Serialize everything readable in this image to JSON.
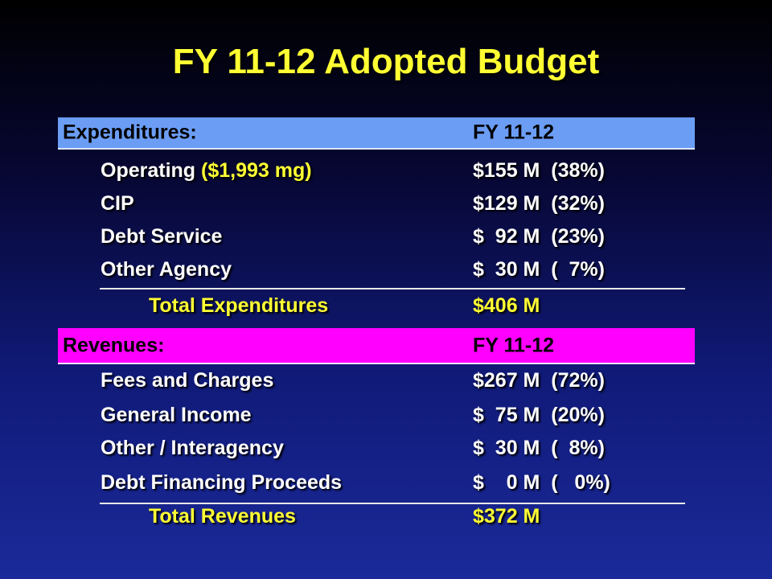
{
  "title": "FY 11-12 Adopted Budget",
  "colors": {
    "title": "#ffff33",
    "expenditures_band": "#6b9df5",
    "revenues_band": "#ff00ff",
    "row_text": "#ffffff"
  },
  "expenditures": {
    "label": "Expenditures:",
    "column_header": "FY 11-12",
    "rows": [
      {
        "name": "Operating ",
        "note": "($1,993 mg)",
        "amount": "$155 M  (38%)"
      },
      {
        "name": "CIP",
        "note": "",
        "amount": "$129 M  (32%)"
      },
      {
        "name": "Debt Service",
        "note": "",
        "amount": "$  92 M  (23%)"
      },
      {
        "name": "Other Agency",
        "note": "",
        "amount": "$  30 M  (  7%)"
      }
    ],
    "total": {
      "name": "Total Expenditures",
      "amount": "$406 M"
    }
  },
  "revenues": {
    "label": "Revenues:",
    "column_header": "FY 11-12",
    "rows": [
      {
        "name": "Fees and Charges",
        "amount": "$267 M  (72%)"
      },
      {
        "name": "General Income",
        "amount": "$  75 M  (20%)"
      },
      {
        "name": "Other / Interagency",
        "amount": "$  30 M  (  8%)"
      },
      {
        "name": "Debt Financing Proceeds",
        "amount": "$    0 M  (   0%)"
      }
    ],
    "total": {
      "name": "Total Revenues",
      "amount": "$372 M"
    }
  }
}
